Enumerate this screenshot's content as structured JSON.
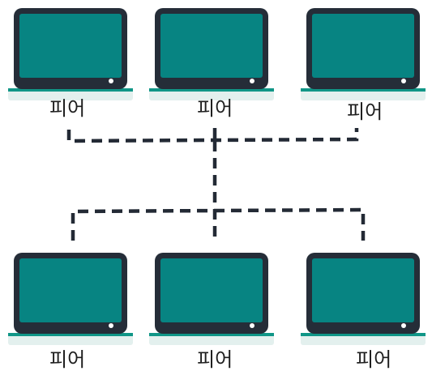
{
  "diagram": {
    "colors": {
      "screen": "#078482",
      "bezel": "#252d38",
      "base": "#109687",
      "shadow": "#e3f0ee",
      "link": "#232a35"
    },
    "peers": [
      {
        "id": "peer-top-left",
        "label": "피어",
        "icon": "laptop-icon"
      },
      {
        "id": "peer-top-center",
        "label": "피어",
        "icon": "laptop-icon"
      },
      {
        "id": "peer-top-right",
        "label": "피어",
        "icon": "laptop-icon"
      },
      {
        "id": "peer-bottom-left",
        "label": "피어",
        "icon": "laptop-icon"
      },
      {
        "id": "peer-bottom-center",
        "label": "피어",
        "icon": "laptop-icon"
      },
      {
        "id": "peer-bottom-right",
        "label": "피어",
        "icon": "laptop-icon"
      }
    ],
    "link_style": "dashed"
  }
}
